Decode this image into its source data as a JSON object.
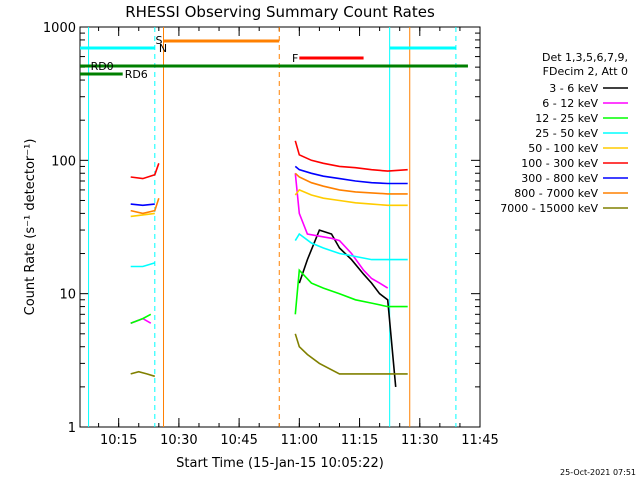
{
  "chart_data": {
    "type": "line",
    "title": "RHESSI Observing Summary Count Rates",
    "xlabel": "Start Time (15-Jan-15 10:05:22)",
    "ylabel": "Count Rate (s⁻¹ detector⁻¹)",
    "y_scale": "log",
    "xlim": [
      "10:05:22",
      "11:45:00"
    ],
    "ylim": [
      1,
      1000
    ],
    "x_ticks": [
      "10:15",
      "10:30",
      "10:45",
      "11:00",
      "11:15",
      "11:30",
      "11:45"
    ],
    "y_ticks": [
      "1",
      "10",
      "100",
      "1000"
    ],
    "timestamp": "25-Oct-2021 07:51",
    "legend": {
      "position": "right",
      "header": [
        "Det 1,3,5,6,7,9,",
        "FDecim 2, Att 0"
      ]
    },
    "flags": [
      {
        "label": "S",
        "color": "#ff8000"
      },
      {
        "label": "N",
        "color": "#00ffff"
      },
      {
        "label": "F",
        "color": "#ff0000"
      },
      {
        "label": "RD0",
        "color": "#007f00"
      },
      {
        "label": "RD6",
        "color": "#007f00"
      }
    ],
    "series": [
      {
        "name": "3 - 6 keV",
        "color": "#000000",
        "segments": [
          {
            "x": [
              "11:00",
              "11:02",
              "11:05",
              "11:08",
              "11:10",
              "11:13",
              "11:16",
              "11:18",
              "11:20",
              "11:22",
              "11:24"
            ],
            "y": [
              12,
              18,
              30,
              28,
              22,
              18,
              14,
              12,
              10,
              9,
              2
            ]
          }
        ]
      },
      {
        "name": "6 - 12 keV",
        "color": "#ff00ff",
        "segments": [
          {
            "x": [
              "10:18",
              "10:21",
              "10:23"
            ],
            "y": [
              6,
              6.5,
              6
            ]
          },
          {
            "x": [
              "10:59",
              "11:00",
              "11:02",
              "11:05",
              "11:08",
              "11:10",
              "11:13",
              "11:16",
              "11:18",
              "11:20",
              "11:22"
            ],
            "y": [
              80,
              40,
              28,
              27,
              26,
              25,
              20,
              15,
              13,
              12,
              11
            ]
          }
        ]
      },
      {
        "name": "12 - 25 keV",
        "color": "#00ff00",
        "segments": [
          {
            "x": [
              "10:18",
              "10:21",
              "10:23"
            ],
            "y": [
              6,
              6.5,
              7
            ]
          },
          {
            "x": [
              "10:59",
              "11:00",
              "11:03",
              "11:06",
              "11:10",
              "11:14",
              "11:18",
              "11:22",
              "11:27"
            ],
            "y": [
              7,
              15,
              12,
              11,
              10,
              9,
              8.5,
              8,
              8
            ]
          }
        ]
      },
      {
        "name": "25 - 50 keV",
        "color": "#00ffff",
        "segments": [
          {
            "x": [
              "10:18",
              "10:21",
              "10:24"
            ],
            "y": [
              16,
              16,
              17
            ]
          },
          {
            "x": [
              "10:59",
              "11:00",
              "11:03",
              "11:06",
              "11:10",
              "11:14",
              "11:18",
              "11:22",
              "11:27"
            ],
            "y": [
              25,
              28,
              24,
              22,
              20,
              19,
              18,
              18,
              18
            ]
          }
        ]
      },
      {
        "name": "50 - 100 keV",
        "color": "#ffcc00",
        "segments": [
          {
            "x": [
              "10:18",
              "10:21",
              "10:24"
            ],
            "y": [
              38,
              39,
              40
            ]
          },
          {
            "x": [
              "10:59",
              "11:00",
              "11:03",
              "11:06",
              "11:10",
              "11:14",
              "11:18",
              "11:22",
              "11:27"
            ],
            "y": [
              55,
              60,
              55,
              52,
              50,
              48,
              47,
              46,
              46
            ]
          }
        ]
      },
      {
        "name": "100 - 300 keV",
        "color": "#ff0000",
        "segments": [
          {
            "x": [
              "10:18",
              "10:21",
              "10:24",
              "10:25"
            ],
            "y": [
              75,
              73,
              78,
              95
            ]
          },
          {
            "x": [
              "10:59",
              "11:00",
              "11:03",
              "11:06",
              "11:10",
              "11:14",
              "11:18",
              "11:22",
              "11:27"
            ],
            "y": [
              140,
              110,
              100,
              95,
              90,
              88,
              85,
              83,
              85
            ]
          }
        ]
      },
      {
        "name": "300 - 800 keV",
        "color": "#0000ff",
        "segments": [
          {
            "x": [
              "10:18",
              "10:21",
              "10:24"
            ],
            "y": [
              47,
              46,
              47
            ]
          },
          {
            "x": [
              "10:59",
              "11:00",
              "11:03",
              "11:06",
              "11:10",
              "11:14",
              "11:18",
              "11:22",
              "11:27"
            ],
            "y": [
              90,
              85,
              80,
              76,
              73,
              70,
              68,
              67,
              67
            ]
          }
        ]
      },
      {
        "name": "800 - 7000 keV",
        "color": "#ff8000",
        "segments": [
          {
            "x": [
              "10:18",
              "10:21",
              "10:24",
              "10:25"
            ],
            "y": [
              42,
              40,
              42,
              52
            ]
          },
          {
            "x": [
              "10:59",
              "11:00",
              "11:03",
              "11:06",
              "11:10",
              "11:14",
              "11:18",
              "11:22",
              "11:27"
            ],
            "y": [
              80,
              75,
              68,
              64,
              60,
              58,
              57,
              56,
              56
            ]
          }
        ]
      },
      {
        "name": "7000 - 15000 keV",
        "color": "#808000",
        "segments": [
          {
            "x": [
              "10:18",
              "10:20",
              "10:22",
              "10:24"
            ],
            "y": [
              2.5,
              2.6,
              2.5,
              2.4
            ]
          },
          {
            "x": [
              "10:59",
              "11:00",
              "11:02",
              "11:05",
              "11:10",
              "11:15",
              "11:20",
              "11:27"
            ],
            "y": [
              5,
              4,
              3.5,
              3,
              2.5,
              2.5,
              2.5,
              2.5
            ]
          }
        ]
      }
    ]
  }
}
